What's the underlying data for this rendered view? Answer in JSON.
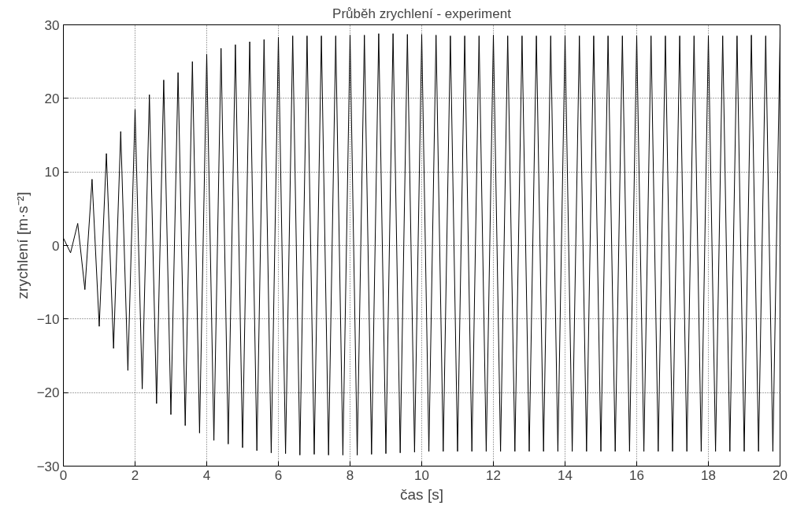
{
  "chart_data": {
    "type": "line",
    "title": "Průběh zrychlení - experiment",
    "xlabel": "čas [s]",
    "ylabel": "zrychlení [m·s⁻²]",
    "xlim": [
      0,
      20
    ],
    "ylim": [
      -30,
      30
    ],
    "xticks": [
      0,
      2,
      4,
      6,
      8,
      10,
      12,
      14,
      16,
      18,
      20
    ],
    "yticks": [
      -30,
      -20,
      -10,
      0,
      10,
      20,
      30
    ],
    "grid": true,
    "line_style": "solid",
    "series": [
      {
        "color": "#000000",
        "x": [
          0,
          0.2,
          0.4,
          0.6,
          0.8,
          1,
          1.2,
          1.4,
          1.6,
          1.8,
          2,
          2.2,
          2.4,
          2.6,
          2.8,
          3,
          3.2,
          3.4,
          3.6,
          3.8,
          4,
          4.2,
          4.4,
          4.6,
          4.8,
          5,
          5.2,
          5.4,
          5.6,
          5.8,
          6,
          6.2,
          6.4,
          6.6,
          6.8,
          7,
          7.2,
          7.4,
          7.6,
          7.8,
          8,
          8.2,
          8.4,
          8.6,
          8.8,
          9,
          9.2,
          9.4,
          9.6,
          9.8,
          10,
          10.2,
          10.4,
          10.6,
          10.8,
          11,
          11.2,
          11.4,
          11.6,
          11.8,
          12,
          12.2,
          12.4,
          12.6,
          12.8,
          13,
          13.2,
          13.4,
          13.6,
          13.8,
          14,
          14.2,
          14.4,
          14.6,
          14.8,
          15,
          15.2,
          15.4,
          15.6,
          15.8,
          16,
          16.2,
          16.4,
          16.6,
          16.8,
          17,
          17.2,
          17.4,
          17.6,
          17.8,
          18,
          18.2,
          18.4,
          18.6,
          18.8,
          19,
          19.2,
          19.4,
          19.6,
          19.8,
          20
        ],
        "values": [
          1,
          -1,
          3,
          -6,
          9,
          -11,
          12.5,
          -14,
          15.5,
          -17,
          18.5,
          -19.5,
          20.5,
          -21.5,
          22.5,
          -23,
          23.5,
          -24.5,
          25,
          -25.5,
          26,
          -26.5,
          26.8,
          -27,
          27.3,
          -27.5,
          27.7,
          -27.9,
          28,
          -28.2,
          28.3,
          -28.3,
          28.5,
          -28.5,
          28.5,
          -28.4,
          28.5,
          -28.5,
          28.5,
          -28.5,
          28.6,
          -28.5,
          28.6,
          -28.4,
          28.8,
          -28.3,
          28.8,
          -28.2,
          28.7,
          -28.1,
          28.7,
          -28,
          28.6,
          -28,
          28.5,
          -28,
          28.5,
          -28,
          28.5,
          -28,
          28.6,
          -28,
          28.5,
          -28,
          28.5,
          -28,
          28.5,
          -28,
          28.5,
          -28,
          28.5,
          -28,
          28.5,
          -28,
          28.5,
          -28,
          28.5,
          -28,
          28.5,
          -28,
          28.5,
          -28,
          28.5,
          -28,
          28.5,
          -28,
          28.5,
          -28,
          28.5,
          -28,
          28.5,
          -28,
          28.5,
          -28,
          28.5,
          -28,
          28.6,
          -28,
          28.5,
          -28,
          28.5
        ]
      }
    ]
  }
}
